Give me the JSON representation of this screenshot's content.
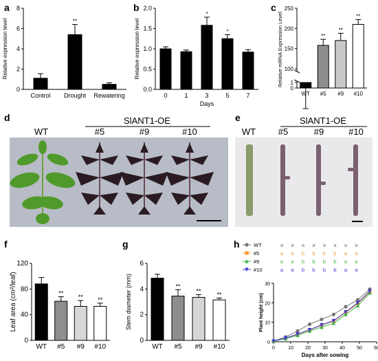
{
  "panel_labels": {
    "a": "a",
    "b": "b",
    "c": "c",
    "d": "d",
    "e": "e",
    "f": "f",
    "g": "g",
    "h": "h"
  },
  "photo_d": {
    "wt": "WT",
    "group": "SlANT1-OE",
    "lines": [
      "#5",
      "#9",
      "#10"
    ]
  },
  "photo_e": {
    "wt": "WT",
    "group": "SlANT1-OE",
    "lines": [
      "#5",
      "#9",
      "#10"
    ]
  },
  "colors": {
    "wt": "#777777",
    "l5": "#f39a3a",
    "l9": "#39b54a",
    "l10": "#3b3bd6",
    "black": "#000000",
    "gray": "#a0a0a0",
    "light": "#d6d6d6",
    "photo_bg": "#b8bcc6",
    "photo_bg_e": "#e9e9ec",
    "leaf_green": "#4f9a2a",
    "leaf_dark": "#2a1b22",
    "stem_green": "#8a9a6a",
    "stem_dark": "#7a6070"
  },
  "chart_data": [
    {
      "type": "bar",
      "panel": "a",
      "categories": [
        "Control",
        "Drought",
        "Rewatering"
      ],
      "values": [
        1.1,
        5.4,
        0.5
      ],
      "errors": [
        0.45,
        1.0,
        0.15
      ],
      "fills": [
        "#000000",
        "#000000",
        "#000000"
      ],
      "sig": [
        "",
        "**",
        ""
      ],
      "ylabel": "Relative expression level",
      "ylim": [
        0,
        8
      ],
      "yticks": [
        "0",
        "2",
        "4",
        "6",
        "8"
      ],
      "xlabel": ""
    },
    {
      "type": "bar",
      "panel": "b",
      "categories": [
        "0",
        "1",
        "3",
        "5",
        "7"
      ],
      "values": [
        1.0,
        0.93,
        1.58,
        1.25,
        0.92
      ],
      "errors": [
        0.05,
        0.04,
        0.2,
        0.1,
        0.06
      ],
      "fills": [
        "#000000",
        "#000000",
        "#000000",
        "#000000",
        "#000000"
      ],
      "sig": [
        "",
        "",
        "*",
        "*",
        ""
      ],
      "ylabel": "Relative expression level",
      "ylim": [
        0,
        2.0
      ],
      "yticks": [
        "0.0",
        "0.5",
        "1.0",
        "1.5",
        "2.0"
      ],
      "xlabel": "Days"
    },
    {
      "type": "bar",
      "panel": "c",
      "categories": [
        "WT",
        "#5",
        "#9",
        "#10"
      ],
      "values": [
        1,
        158,
        170,
        210
      ],
      "errors": [
        0.2,
        15,
        18,
        12
      ],
      "fills": [
        "#000000",
        "#8e8e8e",
        "#c8c8c8",
        "#ffffff"
      ],
      "sig": [
        "",
        "**",
        "**",
        "**"
      ],
      "ylabel": "Relative mRNA Expression Level",
      "ylim": [
        0,
        250
      ],
      "axis_break": [
        1,
        100
      ],
      "yticks_low": [
        "0",
        "1"
      ],
      "yticks_high": [
        "100",
        "150",
        "200",
        "250"
      ],
      "xlabel": ""
    },
    {
      "type": "bar",
      "panel": "f",
      "categories": [
        "WT",
        "#5",
        "#9",
        "#10"
      ],
      "values": [
        88,
        61,
        53,
        53
      ],
      "errors": [
        10,
        7,
        9,
        5
      ],
      "fills": [
        "#000000",
        "#8e8e8e",
        "#d6d6d6",
        "#ffffff"
      ],
      "sig": [
        "",
        "**",
        "**",
        "**"
      ],
      "ylabel": "Leaf area (cm²/leaf)",
      "ylim": [
        0,
        120
      ],
      "yticks": [
        "0",
        "40",
        "80",
        "120"
      ],
      "xlabel": ""
    },
    {
      "type": "bar",
      "panel": "g",
      "categories": [
        "WT",
        "#5",
        "#9",
        "#10"
      ],
      "values": [
        4.85,
        3.45,
        3.35,
        3.15
      ],
      "errors": [
        0.3,
        0.5,
        0.22,
        0.15
      ],
      "fills": [
        "#000000",
        "#8e8e8e",
        "#d6d6d6",
        "#ffffff"
      ],
      "sig": [
        "",
        "**",
        "**",
        "**"
      ],
      "ylabel": "Stem diameter (mm)",
      "ylim": [
        0,
        6
      ],
      "yticks": [
        "0",
        "2",
        "4",
        "6"
      ],
      "xlabel": ""
    },
    {
      "type": "line",
      "panel": "h",
      "x": [
        0,
        7,
        14,
        21,
        28,
        35,
        42,
        49,
        56
      ],
      "series": [
        {
          "name": "WT",
          "color": "#777777",
          "marker": "circle",
          "values": [
            0.3,
            2.5,
            5.5,
            9,
            11.5,
            14,
            18,
            21.5,
            27
          ]
        },
        {
          "name": "#5",
          "color": "#f39a3a",
          "marker": "square",
          "values": [
            0.3,
            1.8,
            3.8,
            6,
            8.5,
            10.5,
            15,
            19.5,
            25.5
          ]
        },
        {
          "name": "#9",
          "color": "#39b54a",
          "marker": "triangle",
          "values": [
            0.3,
            1.6,
            3.3,
            5.5,
            7.5,
            9.5,
            14,
            18.5,
            25
          ]
        },
        {
          "name": "#10",
          "color": "#3b3bd6",
          "marker": "triangle-down",
          "values": [
            0.3,
            1.9,
            4.0,
            6.2,
            8.7,
            10.8,
            15.3,
            20,
            26
          ]
        }
      ],
      "letters": [
        [
          "a",
          "a",
          "a",
          "a",
          "a",
          "a",
          "a",
          "a"
        ],
        [
          "a",
          "a",
          "b",
          "b",
          "b",
          "b",
          "a",
          "a"
        ],
        [
          "a",
          "a",
          "b",
          "b",
          "b",
          "b",
          "a",
          "a"
        ],
        [
          "a",
          "a",
          "b",
          "b",
          "b",
          "b",
          "a",
          "a"
        ]
      ],
      "ylabel": "Plant height (cm)",
      "xlabel": "Days after sowing",
      "ylim": [
        0,
        30
      ],
      "xlim": [
        0,
        60
      ],
      "yticks": [
        "0",
        "10",
        "20",
        "30"
      ],
      "xticks": [
        "0",
        "10",
        "20",
        "30",
        "40",
        "50",
        "60"
      ]
    }
  ]
}
